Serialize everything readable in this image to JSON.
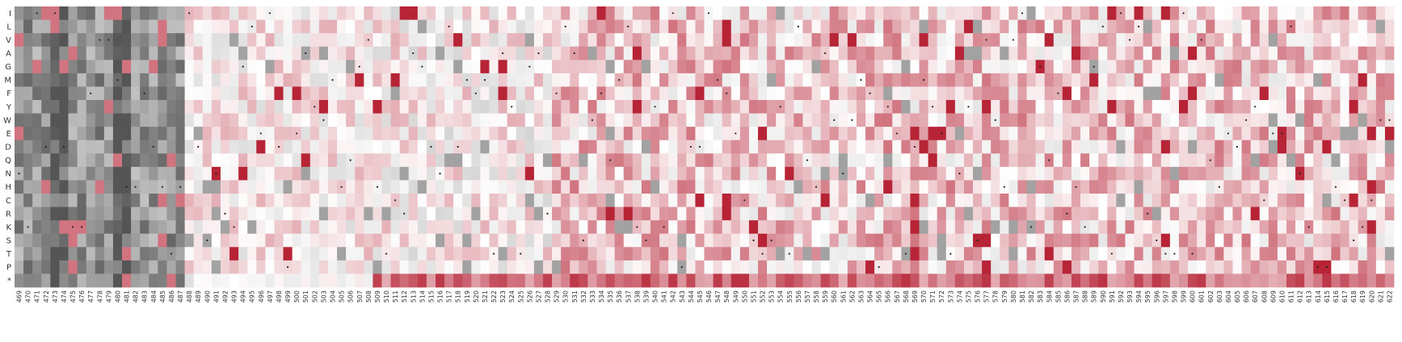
{
  "chart_data": {
    "type": "heatmap",
    "title": "",
    "xlabel": "",
    "ylabel": "",
    "rows": [
      "I",
      "L",
      "V",
      "A",
      "G",
      "M",
      "F",
      "Y",
      "W",
      "E",
      "D",
      "Q",
      "N",
      "H",
      "C",
      "R",
      "K",
      "S",
      "T",
      "P",
      "*"
    ],
    "col_start": 469,
    "col_end": 622,
    "columns": [
      "469",
      "470",
      "471",
      "472",
      "473",
      "474",
      "475",
      "476",
      "477",
      "478",
      "479",
      "480",
      "481",
      "482",
      "483",
      "484",
      "485",
      "486",
      "487",
      "488",
      "489",
      "490",
      "491",
      "492",
      "493",
      "494",
      "495",
      "496",
      "497",
      "498",
      "499",
      "500",
      "501",
      "502",
      "503",
      "504",
      "505",
      "506",
      "507",
      "508",
      "509",
      "510",
      "511",
      "512",
      "513",
      "514",
      "515",
      "516",
      "517",
      "518",
      "519",
      "520",
      "521",
      "522",
      "523",
      "524",
      "525",
      "526",
      "527",
      "528",
      "529",
      "530",
      "531",
      "532",
      "533",
      "534",
      "535",
      "536",
      "537",
      "538",
      "539",
      "540",
      "541",
      "542",
      "543",
      "544",
      "545",
      "546",
      "547",
      "548",
      "549",
      "550",
      "551",
      "552",
      "553",
      "554",
      "555",
      "556",
      "557",
      "558",
      "559",
      "560",
      "561",
      "562",
      "563",
      "564",
      "565",
      "566",
      "567",
      "568",
      "569",
      "570",
      "571",
      "572",
      "573",
      "574",
      "575",
      "576",
      "577",
      "578",
      "579",
      "580",
      "581",
      "582",
      "583",
      "584",
      "585",
      "586",
      "587",
      "588",
      "589",
      "590",
      "591",
      "592",
      "593",
      "594",
      "595",
      "596",
      "597",
      "598",
      "599",
      "600",
      "601",
      "602",
      "603",
      "604",
      "605",
      "606",
      "607",
      "608",
      "609",
      "610",
      "611",
      "612",
      "613",
      "614",
      "615",
      "616",
      "617",
      "618",
      "619",
      "620",
      "621",
      "622"
    ],
    "value_range": [
      -1,
      1
    ],
    "color_scale": {
      "low": "#555555",
      "mid": "#ffffff",
      "high": "#b2182b"
    },
    "grid": false,
    "legend": "none",
    "marker": "wild-type residue dot",
    "note_values": "cell values are estimates read off the colour scale"
  }
}
